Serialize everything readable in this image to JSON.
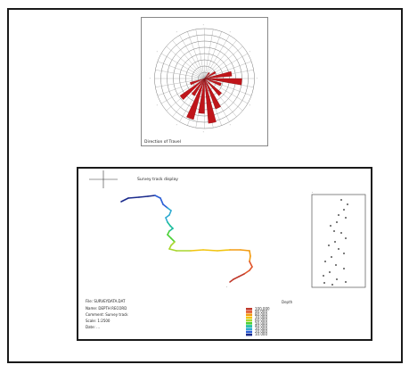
{
  "rose": {
    "caption": "Direction of Travel",
    "rings": 8,
    "petals": [
      {
        "dir": 80,
        "value": 0.55
      },
      {
        "dir": 95,
        "value": 0.75
      },
      {
        "dir": 110,
        "value": 0.35
      },
      {
        "dir": 135,
        "value": 0.45
      },
      {
        "dir": 155,
        "value": 0.65
      },
      {
        "dir": 170,
        "value": 0.9
      },
      {
        "dir": 185,
        "value": 0.7
      },
      {
        "dir": 200,
        "value": 0.85
      },
      {
        "dir": 215,
        "value": 0.4
      },
      {
        "dir": 230,
        "value": 0.6
      },
      {
        "dir": 250,
        "value": 0.3
      },
      {
        "dir": 60,
        "value": 0.25
      },
      {
        "dir": 40,
        "value": 0.15
      }
    ]
  },
  "track": {
    "title": "Survey track display",
    "info_lines": [
      "File: SURVEYDATA.DAT",
      "Name: DEPTH RECORD",
      "Comment: Survey track",
      "Scale: 1:2500",
      "Date: ..."
    ],
    "legend_title": "Depth",
    "legend": [
      {
        "color": "#c0392b",
        "label": "100.000"
      },
      {
        "color": "#e0552a",
        "label": "90.000"
      },
      {
        "color": "#f39c12",
        "label": "80.000"
      },
      {
        "color": "#f1c40f",
        "label": "70.000"
      },
      {
        "color": "#a8d62e",
        "label": "60.000"
      },
      {
        "color": "#4cd137",
        "label": "50.000"
      },
      {
        "color": "#1abc9c",
        "label": "40.000"
      },
      {
        "color": "#2eaad1",
        "label": "30.000"
      },
      {
        "color": "#2c5fd6",
        "label": "20.000"
      },
      {
        "color": "#1a2a8c",
        "label": "10.000"
      }
    ]
  }
}
